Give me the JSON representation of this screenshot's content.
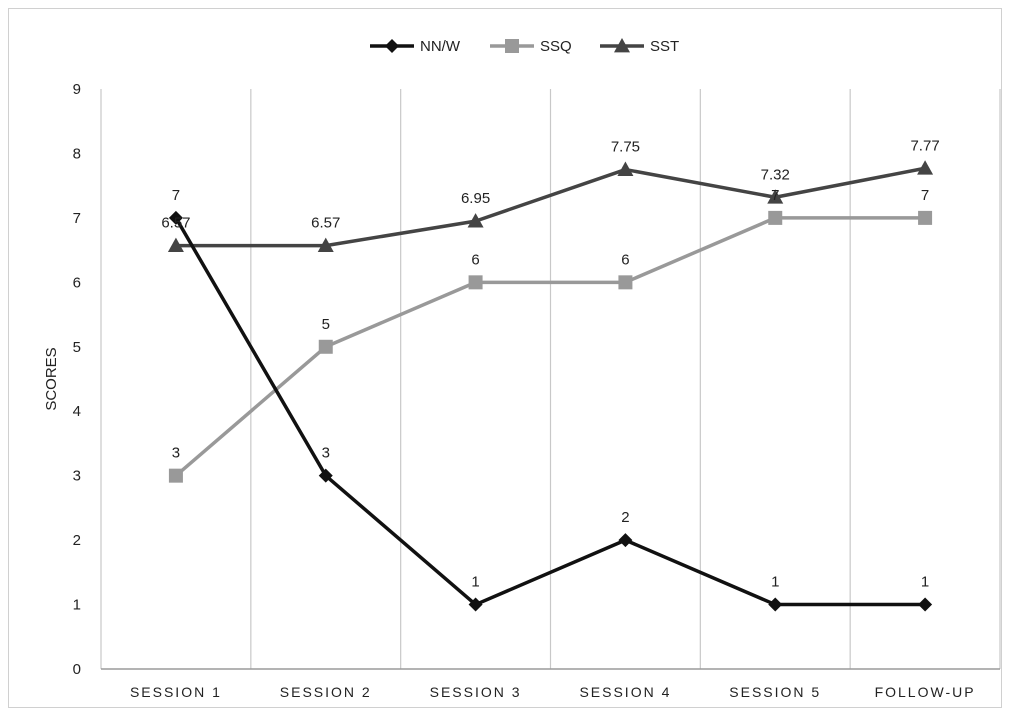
{
  "chart_data": {
    "type": "line",
    "categories": [
      "SESSION 1",
      "SESSION 2",
      "SESSION 3",
      "SESSION 4",
      "SESSION 5",
      "FOLLOW-UP"
    ],
    "ylabel": "SCORES",
    "ylim": [
      0,
      9
    ],
    "yticks": [
      "0",
      "1",
      "2",
      "3",
      "4",
      "5",
      "6",
      "7",
      "8",
      "9"
    ],
    "grid": "vertical",
    "legend": "top-center",
    "series": [
      {
        "name": "NN/W",
        "values": [
          7,
          3,
          1,
          2,
          1,
          1
        ],
        "labels": [
          "7",
          "3",
          "1",
          "2",
          "1",
          "1"
        ],
        "color": "#111111",
        "marker": "diamond"
      },
      {
        "name": "SSQ",
        "values": [
          3,
          5,
          6,
          6,
          7,
          7
        ],
        "labels": [
          "3",
          "5",
          "6",
          "6",
          "7",
          "7"
        ],
        "color": "#999999",
        "marker": "square"
      },
      {
        "name": "SST",
        "values": [
          6.57,
          6.57,
          6.95,
          7.75,
          7.32,
          7.77
        ],
        "labels": [
          "6.57",
          "6.57",
          "6.95",
          "7.75",
          "7.32",
          "7.77"
        ],
        "color": "#444444",
        "marker": "triangle"
      }
    ]
  }
}
